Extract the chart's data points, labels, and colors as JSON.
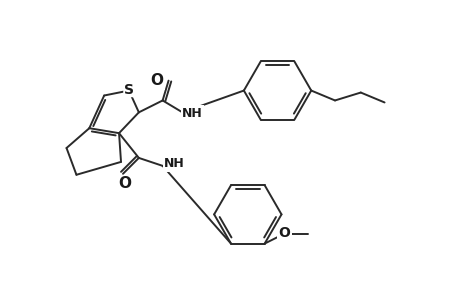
{
  "background_color": "#ffffff",
  "line_color": "#2a2a2a",
  "line_width": 1.4,
  "text_color": "#1a1a1a",
  "font_size": 9,
  "label_S": "S",
  "label_NH1": "NH",
  "label_NH2": "NH",
  "label_O1": "O",
  "label_O2": "O",
  "label_O3": "O"
}
